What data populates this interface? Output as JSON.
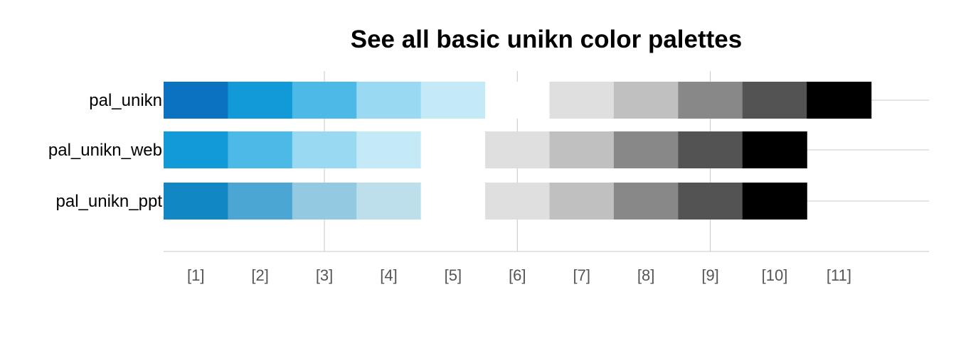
{
  "chart_data": {
    "type": "heatmap",
    "title": "See all basic unikn color palettes",
    "xlabel": "",
    "ylabel": "",
    "x_tick_labels": [
      "[1]",
      "[2]",
      "[3]",
      "[4]",
      "[5]",
      "[6]",
      "[7]",
      "[8]",
      "[9]",
      "[10]",
      "[11]"
    ],
    "xlim": [
      0.5,
      12.4
    ],
    "grid": "on",
    "legend": "none",
    "palettes": [
      {
        "name": "pal_unikn",
        "colors": [
          "#0A72C0",
          "#1199D8",
          "#4DB9E6",
          "#99DAF2",
          "#C5EAF7",
          "#FFFFFF",
          "#DFDFDF",
          "#C0C0C0",
          "#888888",
          "#535353",
          "#000000"
        ]
      },
      {
        "name": "pal_unikn_web",
        "colors": [
          "#1199D8",
          "#4DB9E6",
          "#99DAF2",
          "#C5EAF7",
          "#FFFFFF",
          "#DFDFDF",
          "#C0C0C0",
          "#888888",
          "#535353",
          "#000000"
        ]
      },
      {
        "name": "pal_unikn_ppt",
        "colors": [
          "#1187C4",
          "#4CA6D3",
          "#93C9E1",
          "#BDDFEB",
          "#FFFFFF",
          "#DFDFDF",
          "#C0C0C0",
          "#888888",
          "#535353",
          "#000000"
        ]
      }
    ]
  }
}
